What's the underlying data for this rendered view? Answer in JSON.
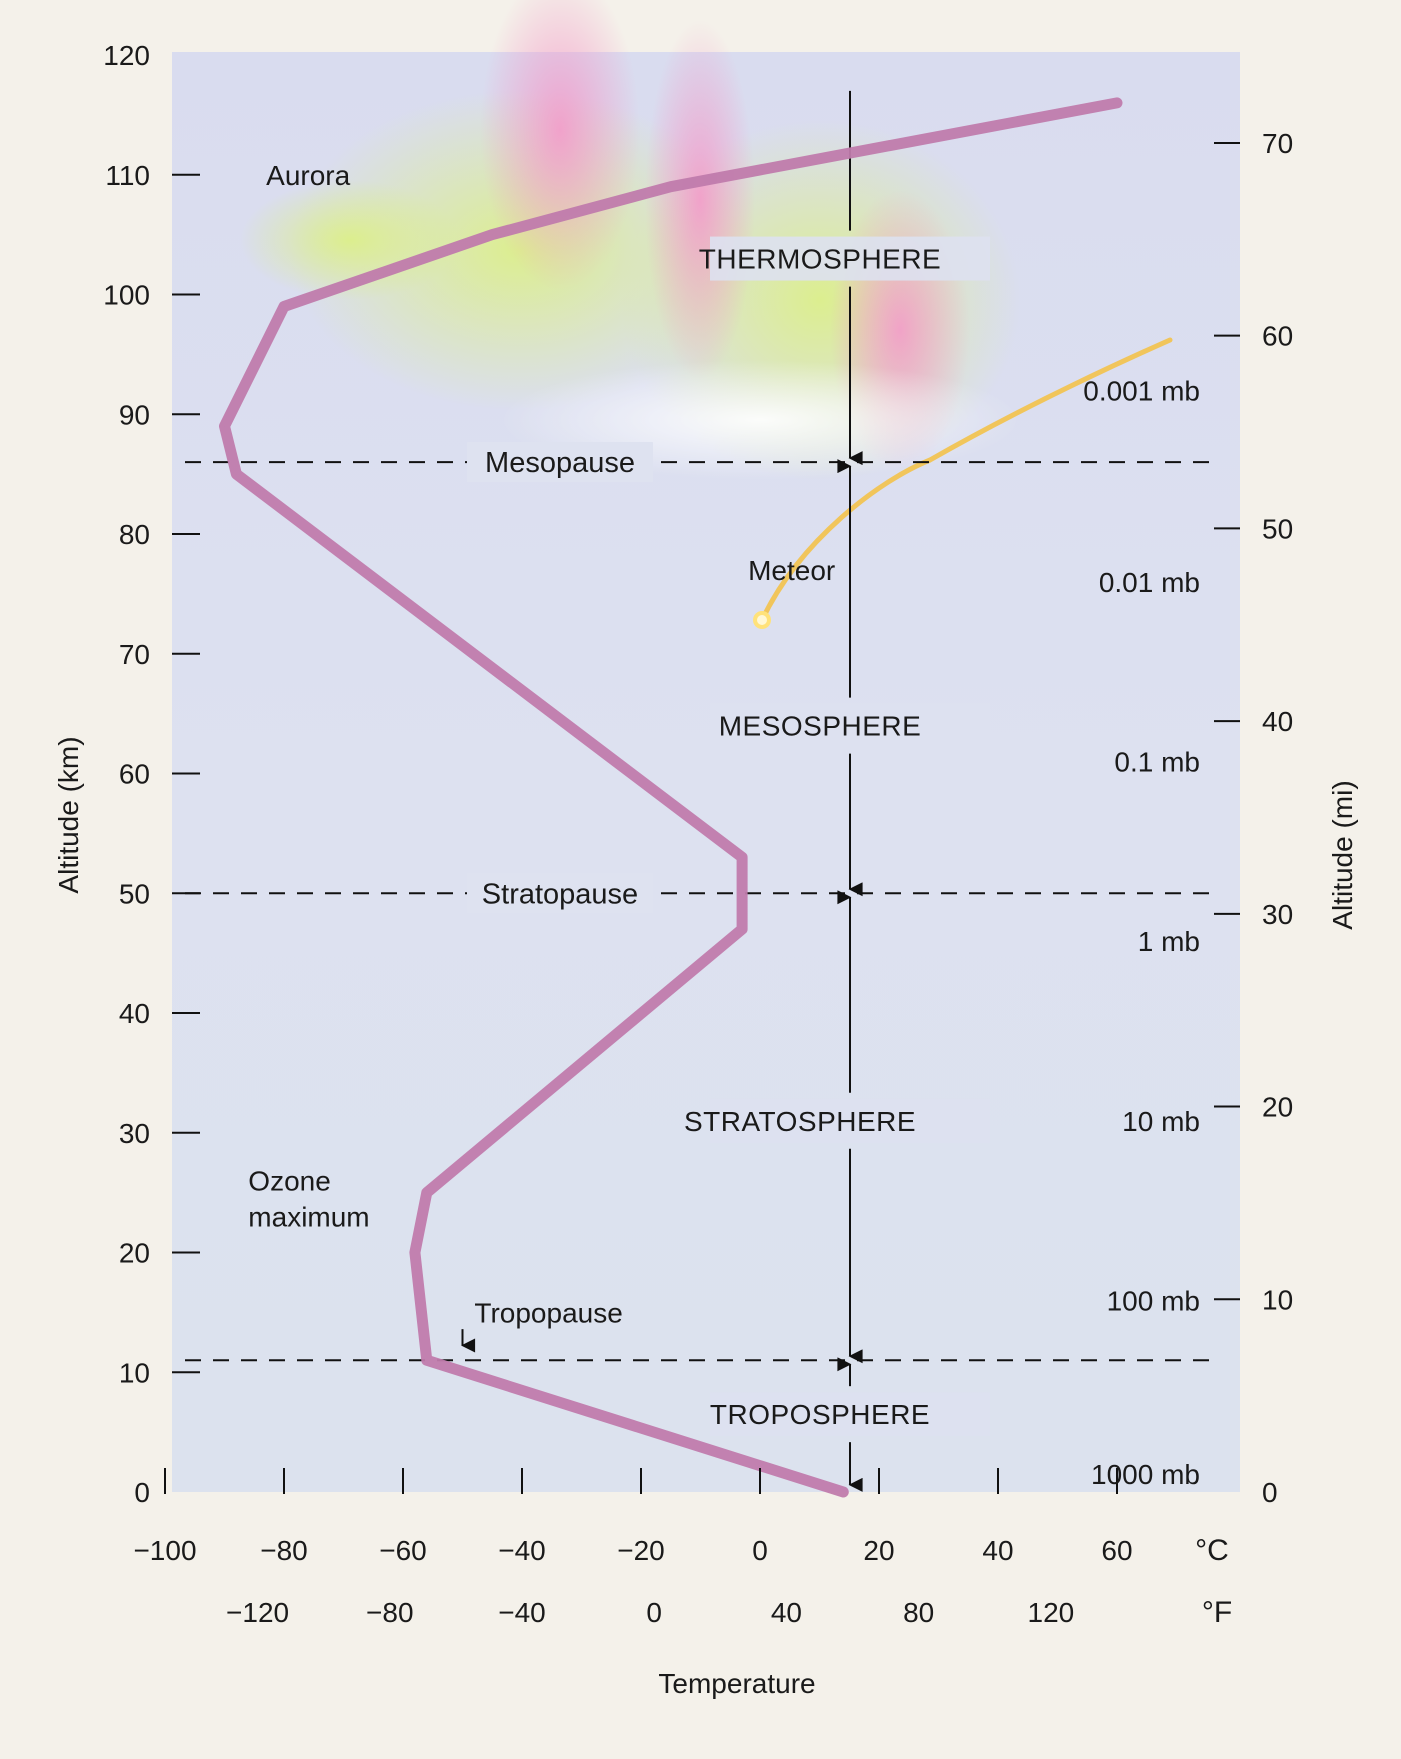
{
  "chart_data": {
    "type": "line",
    "xlabel": "Temperature",
    "ylabel": "Altitude (km)",
    "ylabel_right": "Altitude (mi)",
    "ylim": [
      0,
      120
    ],
    "xlim": [
      -110,
      90
    ],
    "y_ticks": [
      "0",
      "10",
      "20",
      "30",
      "40",
      "50",
      "60",
      "70",
      "80",
      "90",
      "100",
      "110",
      "120"
    ],
    "x_ticks_c": {
      "unit": "°C",
      "values": [
        -100,
        -80,
        -60,
        -40,
        -20,
        0,
        20,
        40,
        60
      ],
      "labels": [
        "−100",
        "−80",
        "−60",
        "−40",
        "−20",
        "0",
        "20",
        "40",
        "60"
      ]
    },
    "x_ticks_f": {
      "unit": "°F",
      "values": [
        -120,
        -80,
        -40,
        0,
        40,
        80,
        120
      ],
      "labels": [
        "−120",
        "−80",
        "−40",
        "0",
        "40",
        "80",
        "120"
      ]
    },
    "right_ticks_mi": {
      "values": [
        0,
        10,
        20,
        30,
        40,
        50,
        60,
        70
      ],
      "labels": [
        "0",
        "10",
        "20",
        "30",
        "40",
        "50",
        "60",
        "70"
      ]
    },
    "series": [
      {
        "name": "",
        "color": "#c07bac",
        "x": [
          14,
          -56,
          -58,
          -56,
          -3,
          -3,
          -88,
          -90,
          -80,
          -45,
          -15,
          60
        ],
        "y": [
          0,
          11,
          20,
          25,
          47,
          53,
          85,
          89,
          99,
          105,
          109,
          116
        ]
      }
    ],
    "layers": [
      {
        "label": "TROPOSPHERE",
        "y": 6.5
      },
      {
        "label": "STRATOSPHERE",
        "y": 31
      },
      {
        "label": "MESOSPHERE",
        "y": 64
      },
      {
        "label": "THERMOSPHERE",
        "y": 103
      }
    ],
    "boundaries": [
      {
        "label": "Tropopause",
        "y": 11
      },
      {
        "label": "Stratopause",
        "y": 50
      },
      {
        "label": "Mesopause",
        "y": 86
      }
    ],
    "pressure_levels": [
      {
        "label": "1000 mb",
        "y": 1.5
      },
      {
        "label": "100 mb",
        "y": 16
      },
      {
        "label": "10 mb",
        "y": 31
      },
      {
        "label": "1 mb",
        "y": 46
      },
      {
        "label": "0.1 mb",
        "y": 61
      },
      {
        "label": "0.01 mb",
        "y": 76
      },
      {
        "label": "0.001 mb",
        "y": 92
      }
    ],
    "annotations": [
      {
        "label": "Aurora",
        "x": -83,
        "y": 110
      },
      {
        "label": "Meteor",
        "x": -2,
        "y": 77
      },
      {
        "label": "Ozone",
        "x": -86,
        "y": 26
      },
      {
        "label": "maximum",
        "x": -86,
        "y": 23
      },
      {
        "label": "Tropopause",
        "x": -48,
        "y": 15
      }
    ],
    "grid": false,
    "colors": {
      "curve": "#c07bac",
      "meteor": "#f3c24a",
      "aurora_pink": "#f2a9cf",
      "aurora_green": "#d5ea9a",
      "plot_bg": "#dfe3f1"
    }
  }
}
